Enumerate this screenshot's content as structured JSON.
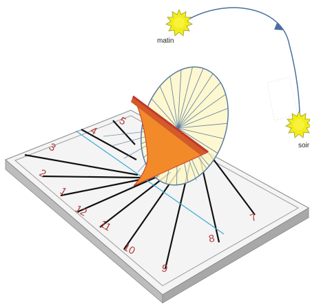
{
  "labels": {
    "morning": "matin",
    "evening": "soir"
  },
  "hour_marks": [
    "7",
    "8",
    "9",
    "10",
    "11",
    "12",
    "1",
    "2",
    "3",
    "4",
    "5"
  ],
  "colors": {
    "sun_fill": "#f2ec1b",
    "sun_outline": "#9a9a20",
    "arc": "#4a6fa0",
    "hour_text": "#b03a3a",
    "gnomon_fill": "#f28a2a",
    "gnomon_edge": "#c0392b",
    "dial_face": "#fdf7c8",
    "dial_rim": "#5a7aa0",
    "plate_top": "#f4f4f4",
    "plate_side": "#bdbdbd",
    "noon_line": "#3aa8d8"
  }
}
